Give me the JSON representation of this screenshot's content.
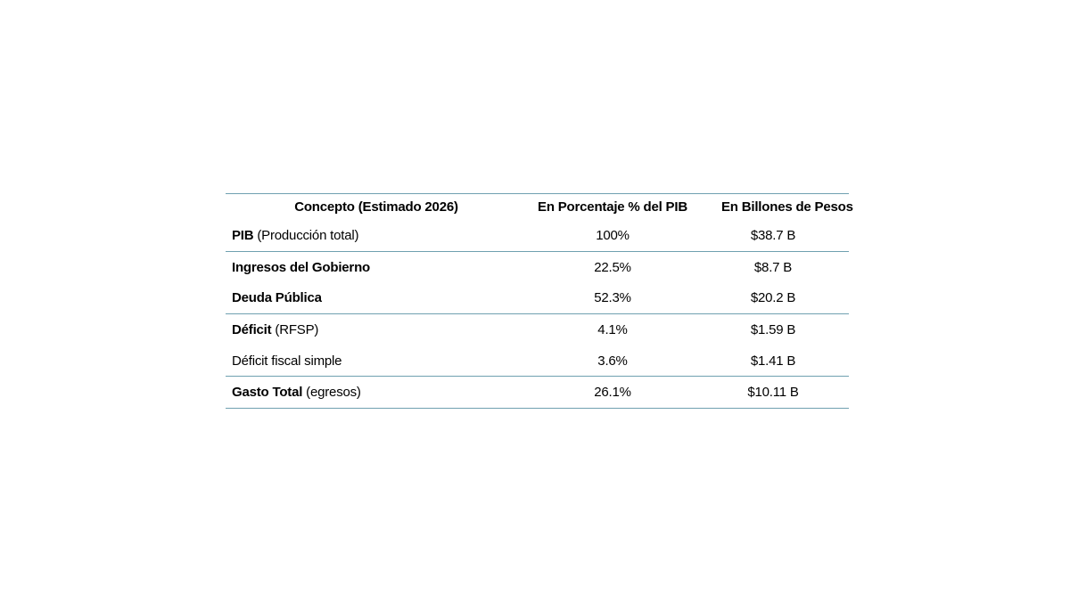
{
  "chart_data": {
    "type": "table",
    "columns": [
      "Concepto (Estimado 2026)",
      "En Porcentaje % del PIB",
      "En Billones de Pesos"
    ],
    "rows": [
      {
        "bold": "PIB",
        "rest": " (Producción total)",
        "pct": "100%",
        "pesos": "$38.7 B"
      },
      {
        "bold": "Ingresos del Gobierno",
        "rest": "",
        "pct": "22.5%",
        "pesos": "$8.7 B"
      },
      {
        "bold": "Deuda Pública",
        "rest": "",
        "pct": "52.3%",
        "pesos": "$20.2 B"
      },
      {
        "bold": "Déficit",
        "rest": " (RFSP)",
        "pct": "4.1%",
        "pesos": "$1.59 B"
      },
      {
        "bold": "",
        "rest": "Déficit fiscal simple",
        "pct": "3.6%",
        "pesos": "$1.41 B"
      },
      {
        "bold": "Gasto Total",
        "rest": " (egresos)",
        "pct": "26.1%",
        "pesos": "$10.11 B"
      }
    ],
    "layout": {
      "grid": "horizontal-rules-only",
      "rule_after_rows": [
        0,
        2,
        4,
        5
      ],
      "legend": "none"
    },
    "accent_color": "#6FA0B0",
    "text_color": "#000000",
    "background_color": "#ffffff"
  }
}
